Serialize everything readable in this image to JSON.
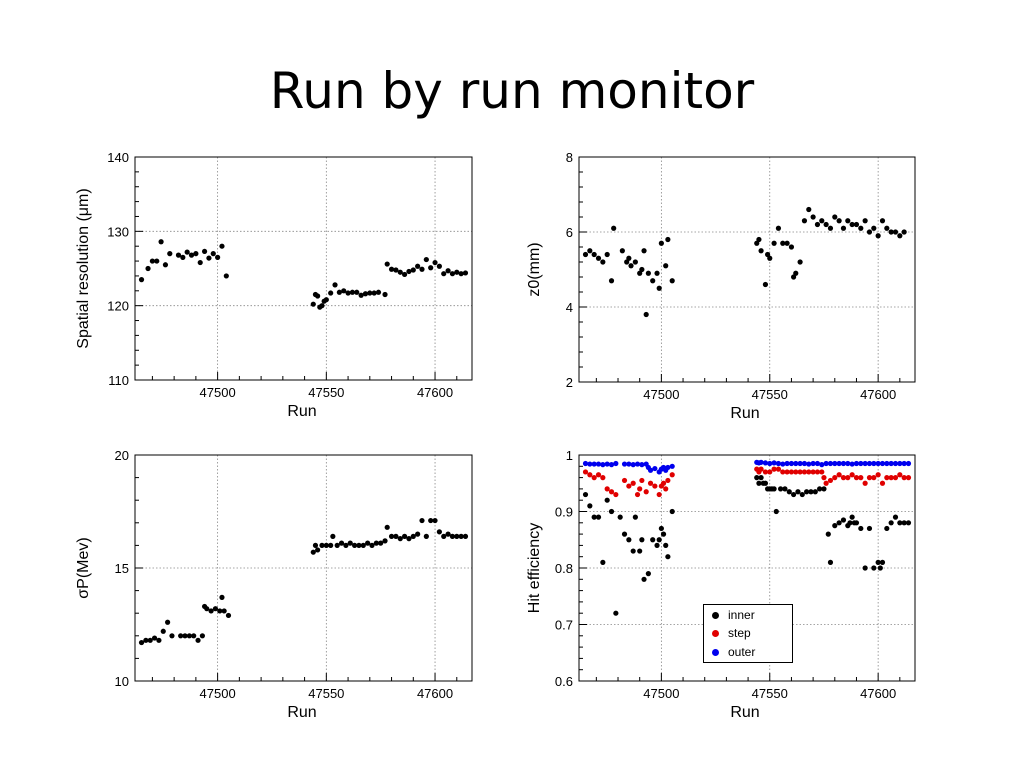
{
  "slide": {
    "title": "Run by run monitor"
  },
  "colors": {
    "inner": "#000000",
    "step": "#e00000",
    "outer": "#0000ee",
    "grid": "#888888"
  },
  "chart_data": [
    {
      "type": "scatter",
      "title": "",
      "xlabel": "Run",
      "ylabel": "Spatial resolution (μm)",
      "xlim": [
        47462,
        47617
      ],
      "ylim": [
        110,
        140
      ],
      "xticks": [
        47500,
        47550,
        47600
      ],
      "yticks": [
        110,
        120,
        130,
        140
      ],
      "grid": true,
      "series": [
        {
          "x": [
            47465,
            47468,
            47470,
            47472,
            47474,
            47476,
            47478,
            47482,
            47484,
            47486,
            47488,
            47490,
            47492,
            47494,
            47496,
            47498,
            47500,
            47502,
            47504,
            47544,
            47545,
            47546,
            47547,
            47548,
            47549,
            47550,
            47552,
            47554,
            47556,
            47558,
            47560,
            47562,
            47564,
            47566,
            47568,
            47570,
            47572,
            47574,
            47577,
            47578,
            47580,
            47582,
            47584,
            47586,
            47588,
            47590,
            47592,
            47594,
            47596,
            47598,
            47600,
            47602,
            47604,
            47606,
            47608,
            47610,
            47612,
            47614
          ],
          "y": [
            123.5,
            125,
            126,
            126,
            128.6,
            125.5,
            127,
            126.8,
            126.5,
            127.2,
            126.8,
            127,
            125.8,
            127.3,
            126.4,
            127,
            126.5,
            128,
            124,
            120.2,
            121.5,
            121.3,
            119.8,
            120,
            120.6,
            120.8,
            121.7,
            122.8,
            121.8,
            122,
            121.7,
            121.8,
            121.8,
            121.4,
            121.6,
            121.7,
            121.7,
            121.8,
            121.5,
            125.6,
            124.9,
            124.8,
            124.5,
            124.2,
            124.6,
            124.8,
            125.3,
            124.9,
            126.2,
            125.1,
            125.8,
            125.3,
            124.3,
            124.7,
            124.3,
            124.5,
            124.3,
            124.4
          ]
        }
      ]
    },
    {
      "type": "scatter",
      "title": "",
      "xlabel": "Run",
      "ylabel": "z0(mm)",
      "xlim": [
        47462,
        47617
      ],
      "ylim": [
        2,
        8
      ],
      "xticks": [
        47500,
        47550,
        47600
      ],
      "yticks": [
        2,
        4,
        6,
        8
      ],
      "grid": true,
      "series": [
        {
          "x": [
            47465,
            47467,
            47469,
            47471,
            47473,
            47475,
            47477,
            47478,
            47482,
            47484,
            47485,
            47486,
            47488,
            47490,
            47491,
            47492,
            47493,
            47494,
            47496,
            47498,
            47499,
            47500,
            47502,
            47503,
            47505,
            47544,
            47545,
            47546,
            47548,
            47549,
            47550,
            47552,
            47554,
            47556,
            47558,
            47560,
            47561,
            47562,
            47564,
            47566,
            47568,
            47570,
            47572,
            47574,
            47576,
            47578,
            47580,
            47582,
            47584,
            47586,
            47588,
            47590,
            47592,
            47594,
            47596,
            47598,
            47600,
            47602,
            47604,
            47606,
            47608,
            47610,
            47612
          ],
          "y": [
            5.4,
            5.5,
            5.4,
            5.3,
            5.2,
            5.4,
            4.7,
            6.1,
            5.5,
            5.2,
            5.3,
            5.1,
            5.2,
            4.9,
            5,
            5.5,
            3.8,
            4.9,
            4.7,
            4.9,
            4.5,
            5.7,
            5.1,
            5.8,
            4.7,
            5.7,
            5.8,
            5.5,
            4.6,
            5.4,
            5.3,
            5.7,
            6.1,
            5.7,
            5.7,
            5.6,
            4.8,
            4.9,
            5.2,
            6.3,
            6.6,
            6.4,
            6.2,
            6.3,
            6.2,
            6.1,
            6.4,
            6.3,
            6.1,
            6.3,
            6.2,
            6.2,
            6.1,
            6.3,
            6,
            6.1,
            5.9,
            6.3,
            6.1,
            6,
            6,
            5.9,
            6
          ]
        }
      ]
    },
    {
      "type": "scatter",
      "title": "",
      "xlabel": "Run",
      "ylabel": "σP(Mev)",
      "xlim": [
        47462,
        47617
      ],
      "ylim": [
        10,
        20
      ],
      "xticks": [
        47500,
        47550,
        47600
      ],
      "yticks": [
        10,
        15,
        20
      ],
      "grid": true,
      "series": [
        {
          "x": [
            47465,
            47467,
            47469,
            47471,
            47473,
            47475,
            47477,
            47479,
            47483,
            47485,
            47487,
            47489,
            47491,
            47493,
            47494,
            47495,
            47497,
            47499,
            47501,
            47502,
            47503,
            47505,
            47544,
            47545,
            47546,
            47548,
            47550,
            47552,
            47553,
            47555,
            47557,
            47559,
            47561,
            47563,
            47565,
            47567,
            47569,
            47571,
            47573,
            47575,
            47577,
            47578,
            47580,
            47582,
            47584,
            47586,
            47588,
            47590,
            47592,
            47594,
            47596,
            47598,
            47600,
            47602,
            47604,
            47606,
            47608,
            47610,
            47612,
            47614
          ],
          "y": [
            11.7,
            11.8,
            11.8,
            11.9,
            11.8,
            12.2,
            12.6,
            12,
            12,
            12,
            12,
            12,
            11.8,
            12,
            13.3,
            13.2,
            13.1,
            13.2,
            13.1,
            13.7,
            13.1,
            12.9,
            15.7,
            16,
            15.8,
            16,
            16,
            16,
            16.4,
            16,
            16.1,
            16,
            16.1,
            16,
            16,
            16,
            16.1,
            16,
            16.1,
            16.1,
            16.2,
            16.8,
            16.4,
            16.4,
            16.3,
            16.4,
            16.3,
            16.4,
            16.5,
            17.1,
            16.4,
            17.1,
            17.1,
            16.6,
            16.4,
            16.5,
            16.4,
            16.4,
            16.4,
            16.4
          ]
        }
      ]
    },
    {
      "type": "scatter",
      "title": "",
      "xlabel": "Run",
      "ylabel": "Hit efficiency",
      "xlim": [
        47462,
        47617
      ],
      "ylim": [
        0.6,
        1
      ],
      "xticks": [
        47500,
        47550,
        47600
      ],
      "yticks": [
        0.6,
        0.7,
        0.8,
        0.9,
        1
      ],
      "grid": true,
      "legend": {
        "position": "bottom-center",
        "entries": [
          "inner",
          "step",
          "outer"
        ]
      },
      "series": [
        {
          "name": "inner",
          "x": [
            47465,
            47467,
            47469,
            47471,
            47473,
            47475,
            47477,
            47479,
            47481,
            47483,
            47485,
            47487,
            47488,
            47490,
            47491,
            47492,
            47494,
            47496,
            47498,
            47499,
            47500,
            47501,
            47502,
            47503,
            47505,
            47544,
            47545,
            47546,
            47547,
            47548,
            47549,
            47550,
            47551,
            47552,
            47553,
            47555,
            47557,
            47559,
            47561,
            47563,
            47565,
            47567,
            47569,
            47571,
            47573,
            47575,
            47577,
            47578,
            47580,
            47582,
            47584,
            47586,
            47587,
            47588,
            47589,
            47590,
            47592,
            47594,
            47596,
            47598,
            47600,
            47601,
            47602,
            47604,
            47606,
            47608,
            47610,
            47612,
            47614
          ],
          "y": [
            0.93,
            0.91,
            0.89,
            0.89,
            0.81,
            0.92,
            0.9,
            0.72,
            0.89,
            0.86,
            0.85,
            0.83,
            0.89,
            0.83,
            0.85,
            0.78,
            0.79,
            0.85,
            0.84,
            0.85,
            0.87,
            0.86,
            0.84,
            0.82,
            0.9,
            0.96,
            0.95,
            0.96,
            0.95,
            0.95,
            0.94,
            0.94,
            0.94,
            0.94,
            0.9,
            0.94,
            0.94,
            0.935,
            0.93,
            0.935,
            0.93,
            0.935,
            0.935,
            0.935,
            0.94,
            0.94,
            0.86,
            0.81,
            0.875,
            0.88,
            0.885,
            0.875,
            0.88,
            0.89,
            0.88,
            0.88,
            0.87,
            0.8,
            0.87,
            0.8,
            0.81,
            0.8,
            0.81,
            0.87,
            0.88,
            0.89,
            0.88,
            0.88,
            0.88
          ]
        },
        {
          "name": "step",
          "x": [
            47465,
            47467,
            47469,
            47471,
            47473,
            47475,
            47477,
            47479,
            47483,
            47485,
            47487,
            47489,
            47490,
            47491,
            47493,
            47495,
            47497,
            47499,
            47500,
            47501,
            47502,
            47503,
            47505,
            47544,
            47545,
            47546,
            47548,
            47550,
            47552,
            47554,
            47556,
            47558,
            47560,
            47562,
            47564,
            47566,
            47568,
            47570,
            47572,
            47574,
            47575,
            47576,
            47578,
            47580,
            47582,
            47584,
            47586,
            47588,
            47590,
            47592,
            47594,
            47596,
            47598,
            47600,
            47602,
            47604,
            47606,
            47608,
            47610,
            47612,
            47614
          ],
          "y": [
            0.97,
            0.965,
            0.96,
            0.965,
            0.96,
            0.94,
            0.935,
            0.93,
            0.955,
            0.945,
            0.95,
            0.93,
            0.94,
            0.955,
            0.935,
            0.95,
            0.945,
            0.93,
            0.945,
            0.95,
            0.94,
            0.955,
            0.965,
            0.975,
            0.97,
            0.975,
            0.97,
            0.97,
            0.975,
            0.975,
            0.97,
            0.97,
            0.97,
            0.97,
            0.97,
            0.97,
            0.97,
            0.97,
            0.97,
            0.97,
            0.96,
            0.95,
            0.955,
            0.96,
            0.965,
            0.96,
            0.96,
            0.965,
            0.96,
            0.96,
            0.95,
            0.96,
            0.96,
            0.965,
            0.95,
            0.96,
            0.96,
            0.96,
            0.965,
            0.96,
            0.96
          ]
        },
        {
          "name": "outer",
          "x": [
            47465,
            47467,
            47469,
            47471,
            47473,
            47475,
            47477,
            47479,
            47483,
            47485,
            47487,
            47489,
            47491,
            47493,
            47494,
            47495,
            47497,
            47499,
            47500,
            47501,
            47502,
            47503,
            47505,
            47544,
            47545,
            47546,
            47548,
            47550,
            47552,
            47554,
            47556,
            47558,
            47560,
            47562,
            47564,
            47566,
            47568,
            47570,
            47572,
            47574,
            47576,
            47578,
            47580,
            47582,
            47584,
            47586,
            47588,
            47590,
            47592,
            47594,
            47596,
            47598,
            47600,
            47602,
            47604,
            47606,
            47608,
            47610,
            47612,
            47614
          ],
          "y": [
            0.985,
            0.984,
            0.984,
            0.984,
            0.983,
            0.984,
            0.983,
            0.985,
            0.984,
            0.984,
            0.983,
            0.984,
            0.983,
            0.984,
            0.978,
            0.973,
            0.976,
            0.97,
            0.975,
            0.978,
            0.973,
            0.978,
            0.98,
            0.987,
            0.986,
            0.987,
            0.986,
            0.985,
            0.986,
            0.985,
            0.984,
            0.985,
            0.985,
            0.985,
            0.985,
            0.985,
            0.984,
            0.985,
            0.985,
            0.983,
            0.985,
            0.985,
            0.985,
            0.985,
            0.985,
            0.985,
            0.984,
            0.985,
            0.985,
            0.985,
            0.985,
            0.985,
            0.985,
            0.985,
            0.985,
            0.985,
            0.985,
            0.985,
            0.985,
            0.985
          ]
        }
      ]
    }
  ]
}
